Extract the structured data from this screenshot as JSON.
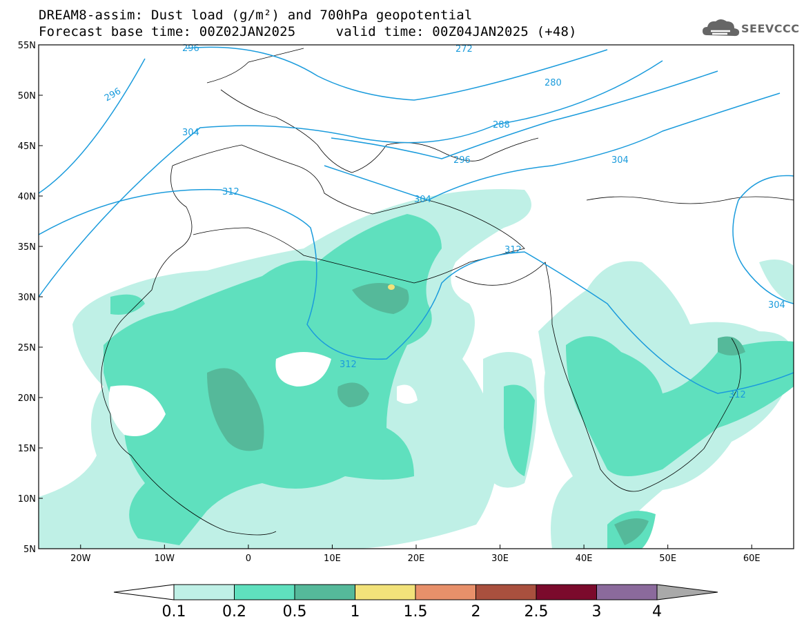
{
  "header": {
    "title_line1": "DREAM8-assim: Dust load (g/m²) and 700hPa geopotential",
    "title_line2": "Forecast base time: 00Z02JAN2025     valid time: 00Z04JAN2025 (+48)"
  },
  "logo": {
    "text": "SEEVCCC",
    "icon": "cloud-logo-icon",
    "color": "#666666"
  },
  "map": {
    "lon_range": [
      -25,
      65
    ],
    "lat_range": [
      5,
      55
    ],
    "lat_ticks": [
      "55N",
      "50N",
      "45N",
      "40N",
      "35N",
      "30N",
      "25N",
      "20N",
      "15N",
      "10N",
      "5N"
    ],
    "lon_ticks": [
      "20W",
      "10W",
      "0",
      "10E",
      "20E",
      "30E",
      "40E",
      "50E",
      "60E"
    ],
    "contour_color": "#1a9bdc",
    "contour_labels": [
      "296",
      "272",
      "280",
      "288",
      "296",
      "304",
      "296",
      "304",
      "312",
      "304",
      "312",
      "312",
      "304",
      "312"
    ]
  },
  "colorbar": {
    "colors": [
      "#bff0e6",
      "#5fe0be",
      "#55b99a",
      "#f2e27a",
      "#e8906a",
      "#a9503e",
      "#7b0a2c",
      "#8b6a9c",
      "#a9a9a9"
    ],
    "tick_labels": [
      "0.1",
      "0.2",
      "0.5",
      "1",
      "1.5",
      "2",
      "2.5",
      "3",
      "4"
    ]
  }
}
